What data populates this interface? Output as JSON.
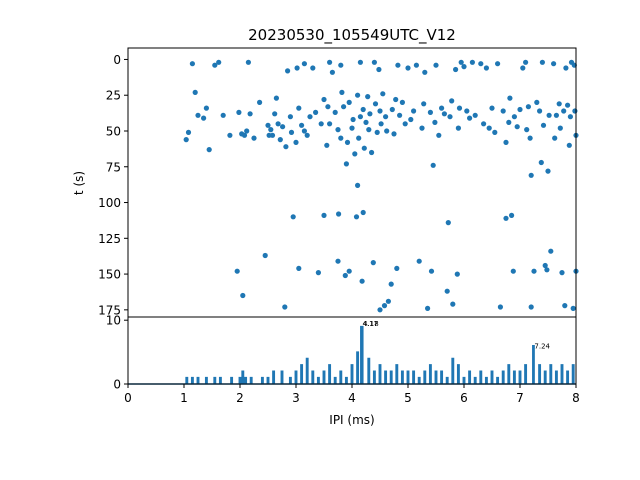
{
  "figure": {
    "title": "20230530_105549UTC_V12"
  },
  "chart_data": [
    {
      "type": "scatter",
      "ylabel": "t (s)",
      "xlim": [
        0,
        8
      ],
      "ylim": [
        180,
        -8
      ],
      "y_inverted": true,
      "yticks": [
        0,
        25,
        50,
        75,
        100,
        125,
        150,
        175
      ],
      "color": "#1f77b4",
      "points": [
        [
          1.04,
          56
        ],
        [
          1.08,
          51
        ],
        [
          1.15,
          3
        ],
        [
          1.2,
          23
        ],
        [
          1.25,
          39
        ],
        [
          1.35,
          41
        ],
        [
          1.4,
          34
        ],
        [
          1.45,
          63
        ],
        [
          1.55,
          4
        ],
        [
          1.62,
          2
        ],
        [
          1.7,
          39
        ],
        [
          1.82,
          53
        ],
        [
          1.95,
          148
        ],
        [
          1.98,
          37
        ],
        [
          2.03,
          52
        ],
        [
          2.05,
          165
        ],
        [
          2.08,
          53
        ],
        [
          2.12,
          50
        ],
        [
          2.15,
          2
        ],
        [
          2.18,
          38
        ],
        [
          2.25,
          55
        ],
        [
          2.35,
          30
        ],
        [
          2.45,
          137
        ],
        [
          2.5,
          46
        ],
        [
          2.52,
          53
        ],
        [
          2.55,
          49
        ],
        [
          2.58,
          53
        ],
        [
          2.62,
          38
        ],
        [
          2.65,
          27
        ],
        [
          2.68,
          45
        ],
        [
          2.72,
          56
        ],
        [
          2.76,
          47
        ],
        [
          2.8,
          173
        ],
        [
          2.82,
          61
        ],
        [
          2.85,
          8
        ],
        [
          2.9,
          40
        ],
        [
          2.92,
          51
        ],
        [
          2.95,
          110
        ],
        [
          3.0,
          58
        ],
        [
          3.02,
          6
        ],
        [
          3.05,
          146
        ],
        [
          3.05,
          34
        ],
        [
          3.1,
          46
        ],
        [
          3.15,
          50
        ],
        [
          3.15,
          3
        ],
        [
          3.2,
          53
        ],
        [
          3.25,
          40
        ],
        [
          3.3,
          6
        ],
        [
          3.35,
          37
        ],
        [
          3.4,
          149
        ],
        [
          3.45,
          45
        ],
        [
          3.5,
          28
        ],
        [
          3.5,
          109
        ],
        [
          3.55,
          60
        ],
        [
          3.57,
          33
        ],
        [
          3.6,
          45
        ],
        [
          3.6,
          2
        ],
        [
          3.65,
          9
        ],
        [
          3.7,
          37
        ],
        [
          3.75,
          49
        ],
        [
          3.75,
          141
        ],
        [
          3.76,
          108
        ],
        [
          3.8,
          4
        ],
        [
          3.8,
          55
        ],
        [
          3.82,
          23
        ],
        [
          3.85,
          33
        ],
        [
          3.88,
          151
        ],
        [
          3.9,
          73
        ],
        [
          3.92,
          58
        ],
        [
          3.95,
          30
        ],
        [
          3.95,
          148
        ],
        [
          4.0,
          48
        ],
        [
          4.02,
          42
        ],
        [
          4.05,
          66
        ],
        [
          4.08,
          110
        ],
        [
          4.1,
          25
        ],
        [
          4.1,
          88
        ],
        [
          4.12,
          55
        ],
        [
          4.15,
          40
        ],
        [
          4.15,
          2
        ],
        [
          4.18,
          155
        ],
        [
          4.2,
          35
        ],
        [
          4.2,
          107
        ],
        [
          4.22,
          62
        ],
        [
          4.25,
          44
        ],
        [
          4.28,
          26
        ],
        [
          4.3,
          49
        ],
        [
          4.32,
          38
        ],
        [
          4.35,
          65
        ],
        [
          4.38,
          142
        ],
        [
          4.4,
          2
        ],
        [
          4.42,
          31
        ],
        [
          4.45,
          51
        ],
        [
          4.48,
          7
        ],
        [
          4.5,
          175
        ],
        [
          4.5,
          36
        ],
        [
          4.52,
          45
        ],
        [
          4.55,
          24
        ],
        [
          4.58,
          172
        ],
        [
          4.6,
          40
        ],
        [
          4.62,
          50
        ],
        [
          4.65,
          169
        ],
        [
          4.7,
          157
        ],
        [
          4.72,
          35
        ],
        [
          4.75,
          52
        ],
        [
          4.78,
          28
        ],
        [
          4.8,
          146
        ],
        [
          4.82,
          4
        ],
        [
          4.85,
          39
        ],
        [
          4.9,
          30
        ],
        [
          4.95,
          45
        ],
        [
          5.0,
          6
        ],
        [
          5.05,
          42
        ],
        [
          5.1,
          36
        ],
        [
          5.15,
          4
        ],
        [
          5.2,
          141
        ],
        [
          5.25,
          48
        ],
        [
          5.28,
          31
        ],
        [
          5.3,
          9
        ],
        [
          5.35,
          174
        ],
        [
          5.4,
          37
        ],
        [
          5.42,
          148
        ],
        [
          5.45,
          74
        ],
        [
          5.48,
          44
        ],
        [
          5.5,
          4
        ],
        [
          5.55,
          53
        ],
        [
          5.6,
          34
        ],
        [
          5.65,
          38
        ],
        [
          5.7,
          162
        ],
        [
          5.72,
          114
        ],
        [
          5.75,
          40
        ],
        [
          5.78,
          29
        ],
        [
          5.8,
          171
        ],
        [
          5.85,
          7
        ],
        [
          5.88,
          150
        ],
        [
          5.9,
          48
        ],
        [
          5.92,
          34
        ],
        [
          5.95,
          2
        ],
        [
          6.0,
          5
        ],
        [
          6.05,
          36
        ],
        [
          6.1,
          41
        ],
        [
          6.15,
          2
        ],
        [
          6.2,
          39
        ],
        [
          6.3,
          3
        ],
        [
          6.35,
          45
        ],
        [
          6.4,
          6
        ],
        [
          6.45,
          48
        ],
        [
          6.5,
          34
        ],
        [
          6.55,
          51
        ],
        [
          6.6,
          3
        ],
        [
          6.65,
          173
        ],
        [
          6.7,
          36
        ],
        [
          6.75,
          58
        ],
        [
          6.75,
          111
        ],
        [
          6.8,
          44
        ],
        [
          6.82,
          27
        ],
        [
          6.85,
          109
        ],
        [
          6.88,
          148
        ],
        [
          6.9,
          40
        ],
        [
          6.95,
          47
        ],
        [
          7.0,
          35
        ],
        [
          7.05,
          6
        ],
        [
          7.1,
          2
        ],
        [
          7.12,
          49
        ],
        [
          7.15,
          33
        ],
        [
          7.18,
          55
        ],
        [
          7.2,
          81
        ],
        [
          7.2,
          173
        ],
        [
          7.25,
          148
        ],
        [
          7.3,
          30
        ],
        [
          7.35,
          36
        ],
        [
          7.38,
          72
        ],
        [
          7.4,
          2
        ],
        [
          7.42,
          46
        ],
        [
          7.45,
          144
        ],
        [
          7.48,
          147
        ],
        [
          7.5,
          78
        ],
        [
          7.52,
          39
        ],
        [
          7.55,
          134
        ],
        [
          7.6,
          3
        ],
        [
          7.62,
          55
        ],
        [
          7.65,
          39
        ],
        [
          7.7,
          31
        ],
        [
          7.72,
          48
        ],
        [
          7.75,
          149
        ],
        [
          7.78,
          36
        ],
        [
          7.8,
          172
        ],
        [
          7.82,
          6
        ],
        [
          7.85,
          32
        ],
        [
          7.88,
          60
        ],
        [
          7.9,
          40
        ],
        [
          7.92,
          2
        ],
        [
          7.95,
          174
        ],
        [
          7.98,
          36
        ],
        [
          8.0,
          148
        ],
        [
          8.0,
          53
        ],
        [
          7.97,
          4
        ]
      ]
    },
    {
      "type": "line",
      "xlabel": "IPI (ms)",
      "xlim": [
        0,
        8
      ],
      "ylim": [
        0,
        10.5
      ],
      "xticks": [
        0,
        1,
        2,
        3,
        4,
        5,
        6,
        7,
        8
      ],
      "yticks": [
        0,
        10
      ],
      "color": "#1f77b4",
      "annotations": [
        {
          "x": 4.17,
          "y": 9.4,
          "text": "4.17"
        },
        {
          "x": 4.18,
          "y": 9.4,
          "text": "4.18"
        },
        {
          "x": 7.24,
          "y": 5.9,
          "text": "7.24"
        }
      ],
      "peaks": [
        {
          "x": 1.05,
          "y": 1
        },
        {
          "x": 1.15,
          "y": 1
        },
        {
          "x": 1.25,
          "y": 1
        },
        {
          "x": 1.4,
          "y": 1
        },
        {
          "x": 1.55,
          "y": 1
        },
        {
          "x": 1.65,
          "y": 1
        },
        {
          "x": 1.85,
          "y": 1
        },
        {
          "x": 2.0,
          "y": 1
        },
        {
          "x": 2.05,
          "y": 2
        },
        {
          "x": 2.1,
          "y": 1
        },
        {
          "x": 2.2,
          "y": 1
        },
        {
          "x": 2.4,
          "y": 1
        },
        {
          "x": 2.5,
          "y": 1
        },
        {
          "x": 2.6,
          "y": 2
        },
        {
          "x": 2.75,
          "y": 2
        },
        {
          "x": 2.9,
          "y": 1
        },
        {
          "x": 3.0,
          "y": 2
        },
        {
          "x": 3.1,
          "y": 3
        },
        {
          "x": 3.2,
          "y": 4
        },
        {
          "x": 3.3,
          "y": 2
        },
        {
          "x": 3.4,
          "y": 1
        },
        {
          "x": 3.5,
          "y": 2
        },
        {
          "x": 3.6,
          "y": 3
        },
        {
          "x": 3.7,
          "y": 1
        },
        {
          "x": 3.8,
          "y": 2
        },
        {
          "x": 3.9,
          "y": 1
        },
        {
          "x": 4.0,
          "y": 3
        },
        {
          "x": 4.1,
          "y": 5
        },
        {
          "x": 4.17,
          "y": 9
        },
        {
          "x": 4.18,
          "y": 9
        },
        {
          "x": 4.3,
          "y": 4
        },
        {
          "x": 4.4,
          "y": 2
        },
        {
          "x": 4.5,
          "y": 3
        },
        {
          "x": 4.6,
          "y": 2
        },
        {
          "x": 4.7,
          "y": 2
        },
        {
          "x": 4.8,
          "y": 3
        },
        {
          "x": 4.9,
          "y": 2
        },
        {
          "x": 5.0,
          "y": 2
        },
        {
          "x": 5.1,
          "y": 2
        },
        {
          "x": 5.2,
          "y": 1
        },
        {
          "x": 5.3,
          "y": 2
        },
        {
          "x": 5.4,
          "y": 3
        },
        {
          "x": 5.5,
          "y": 2
        },
        {
          "x": 5.6,
          "y": 2
        },
        {
          "x": 5.7,
          "y": 1
        },
        {
          "x": 5.8,
          "y": 4
        },
        {
          "x": 5.9,
          "y": 3
        },
        {
          "x": 6.0,
          "y": 1
        },
        {
          "x": 6.1,
          "y": 2
        },
        {
          "x": 6.2,
          "y": 1
        },
        {
          "x": 6.3,
          "y": 2
        },
        {
          "x": 6.4,
          "y": 1
        },
        {
          "x": 6.5,
          "y": 2
        },
        {
          "x": 6.6,
          "y": 1
        },
        {
          "x": 6.7,
          "y": 2
        },
        {
          "x": 6.8,
          "y": 3
        },
        {
          "x": 6.9,
          "y": 2
        },
        {
          "x": 7.0,
          "y": 2
        },
        {
          "x": 7.1,
          "y": 3
        },
        {
          "x": 7.24,
          "y": 6
        },
        {
          "x": 7.35,
          "y": 3
        },
        {
          "x": 7.45,
          "y": 2
        },
        {
          "x": 7.55,
          "y": 3
        },
        {
          "x": 7.65,
          "y": 2
        },
        {
          "x": 7.75,
          "y": 3
        },
        {
          "x": 7.85,
          "y": 2
        },
        {
          "x": 7.95,
          "y": 3
        }
      ]
    }
  ]
}
